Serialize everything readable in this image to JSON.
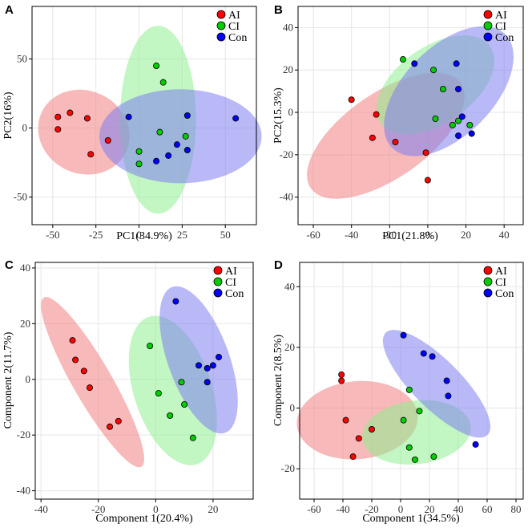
{
  "colors": {
    "AI": "#ff0000",
    "CI": "#00cc00",
    "Con": "#0000ff",
    "AI_fill": "#f08080",
    "CI_fill": "#90ee90",
    "Con_fill": "#8080f0"
  },
  "chart_data": [
    {
      "panel": "A",
      "type": "scatter",
      "xlabel": "PC1(34.9%)",
      "ylabel": "PC2(16%)",
      "xlim": [
        -62,
        68
      ],
      "ylim": [
        -70,
        88
      ],
      "xticks": [
        -50,
        -25,
        0,
        25,
        50
      ],
      "yticks": [
        -50,
        0,
        50
      ],
      "legend": [
        "AI",
        "CI",
        "Con"
      ],
      "legend_position": "top-right",
      "series": [
        {
          "name": "AI",
          "points": [
            [
              -47,
              8
            ],
            [
              -40,
              11
            ],
            [
              -30,
              7
            ],
            [
              -47,
              -1
            ],
            [
              -28,
              -19
            ],
            [
              -18,
              -9
            ]
          ]
        },
        {
          "name": "CI",
          "points": [
            [
              10,
              45
            ],
            [
              14,
              33
            ],
            [
              12,
              -3
            ],
            [
              0,
              -17
            ],
            [
              27,
              -6
            ],
            [
              0,
              -26
            ]
          ]
        },
        {
          "name": "Con",
          "points": [
            [
              -6,
              8
            ],
            [
              28,
              9
            ],
            [
              56,
              7
            ],
            [
              22,
              -12
            ],
            [
              28,
              -16
            ],
            [
              17,
              -20
            ],
            [
              10,
              -24
            ]
          ]
        }
      ],
      "ellipses": [
        {
          "group": "AI",
          "cx": -32,
          "cy": -3,
          "rx": 27,
          "ry": 30,
          "angle": -25
        },
        {
          "group": "CI",
          "cx": 11,
          "cy": 6,
          "rx": 22,
          "ry": 68,
          "angle": 0
        },
        {
          "group": "Con",
          "cx": 24,
          "cy": -6,
          "rx": 47,
          "ry": 34,
          "angle": 0
        }
      ]
    },
    {
      "panel": "B",
      "type": "scatter",
      "xlabel": "PC1(21.8%)",
      "ylabel": "PC2(15.3%)",
      "xlim": [
        -68,
        50
      ],
      "ylim": [
        -53,
        50
      ],
      "xticks": [
        -60,
        -40,
        -20,
        0,
        20,
        40
      ],
      "yticks": [
        -40,
        -20,
        0,
        20,
        40
      ],
      "legend": [
        "AI",
        "CI",
        "Con"
      ],
      "legend_position": "top-right",
      "series": [
        {
          "name": "AI",
          "points": [
            [
              -40,
              6
            ],
            [
              -27,
              -1
            ],
            [
              -29,
              -12
            ],
            [
              -17,
              -14
            ],
            [
              -1,
              -19
            ],
            [
              0,
              -32
            ]
          ]
        },
        {
          "name": "CI",
          "points": [
            [
              -13,
              25
            ],
            [
              3,
              20
            ],
            [
              8,
              11
            ],
            [
              4,
              -3
            ],
            [
              13,
              -6
            ],
            [
              22,
              -6
            ],
            [
              16,
              -4
            ]
          ]
        },
        {
          "name": "Con",
          "points": [
            [
              -7,
              23
            ],
            [
              15,
              23
            ],
            [
              16,
              11
            ],
            [
              18,
              -2
            ],
            [
              16,
              -11
            ],
            [
              23,
              -10
            ]
          ]
        }
      ],
      "ellipses": [
        {
          "group": "AI",
          "cx": -22,
          "cy": -11,
          "rx": 48,
          "ry": 20,
          "angle": 35
        },
        {
          "group": "CI",
          "cx": 4,
          "cy": 13,
          "rx": 35,
          "ry": 18,
          "angle": 35
        },
        {
          "group": "Con",
          "cx": 11,
          "cy": 10,
          "rx": 42,
          "ry": 21,
          "angle": 45
        }
      ]
    },
    {
      "panel": "C",
      "type": "scatter",
      "xlabel": "Component 1(20.4%)",
      "ylabel": "Component 2(11.7%)",
      "xlim": [
        -42,
        34
      ],
      "ylim": [
        -43,
        42
      ],
      "xticks": [
        -40,
        -20,
        0,
        20
      ],
      "yticks": [
        -40,
        -20,
        0,
        20,
        40
      ],
      "legend": [
        "AI",
        "CI",
        "Con"
      ],
      "legend_position": "top-right",
      "series": [
        {
          "name": "AI",
          "points": [
            [
              -29,
              14
            ],
            [
              -28,
              7
            ],
            [
              -25,
              3
            ],
            [
              -23,
              -3
            ],
            [
              -16,
              -17
            ],
            [
              -13,
              -15
            ]
          ]
        },
        {
          "name": "CI",
          "points": [
            [
              -2,
              12
            ],
            [
              1,
              -5
            ],
            [
              9,
              -1
            ],
            [
              5,
              -13
            ],
            [
              10,
              -9
            ],
            [
              13,
              -21
            ]
          ]
        },
        {
          "name": "Con",
          "points": [
            [
              7,
              28
            ],
            [
              15,
              5
            ],
            [
              18,
              4
            ],
            [
              20,
              5
            ],
            [
              22,
              8
            ],
            [
              18,
              -1
            ]
          ]
        }
      ],
      "ellipses": [
        {
          "group": "AI",
          "cx": -22,
          "cy": -1,
          "rx": 34,
          "ry": 7,
          "angle": -60
        },
        {
          "group": "CI",
          "cx": 6,
          "cy": -4,
          "rx": 27,
          "ry": 14,
          "angle": -72
        },
        {
          "group": "Con",
          "cx": 15,
          "cy": 7,
          "rx": 27,
          "ry": 11,
          "angle": -70
        }
      ]
    },
    {
      "panel": "D",
      "type": "scatter",
      "xlabel": "Component 1(34.5%)",
      "ylabel": "Component 2(8.5%)",
      "xlim": [
        -70,
        85
      ],
      "ylim": [
        -30,
        48
      ],
      "xticks": [
        -60,
        -40,
        -20,
        0,
        20,
        40,
        60,
        80
      ],
      "yticks": [
        -20,
        0,
        20,
        40
      ],
      "legend": [
        "AI",
        "CI",
        "Con"
      ],
      "legend_position": "top-right",
      "series": [
        {
          "name": "AI",
          "points": [
            [
              -41,
              11
            ],
            [
              -41,
              9
            ],
            [
              -38,
              -4
            ],
            [
              -29,
              -10
            ],
            [
              -20,
              -7
            ],
            [
              -33,
              -16
            ]
          ]
        },
        {
          "name": "CI",
          "points": [
            [
              6,
              6
            ],
            [
              13,
              -1
            ],
            [
              2,
              -4
            ],
            [
              6,
              -13
            ],
            [
              10,
              -17
            ],
            [
              23,
              -16
            ]
          ]
        },
        {
          "name": "Con",
          "points": [
            [
              2,
              24
            ],
            [
              16,
              18
            ],
            [
              22,
              17
            ],
            [
              32,
              9
            ],
            [
              33,
              4
            ],
            [
              52,
              -12
            ]
          ]
        }
      ],
      "ellipses": [
        {
          "group": "AI",
          "cx": -30,
          "cy": -4,
          "rx": 27,
          "ry": 20,
          "angle": -85
        },
        {
          "group": "CI",
          "cx": 11,
          "cy": -8,
          "rx": 22,
          "ry": 18,
          "angle": -83
        },
        {
          "group": "Con",
          "cx": 25,
          "cy": 8,
          "rx": 50,
          "ry": 8,
          "angle": -45
        }
      ]
    }
  ]
}
